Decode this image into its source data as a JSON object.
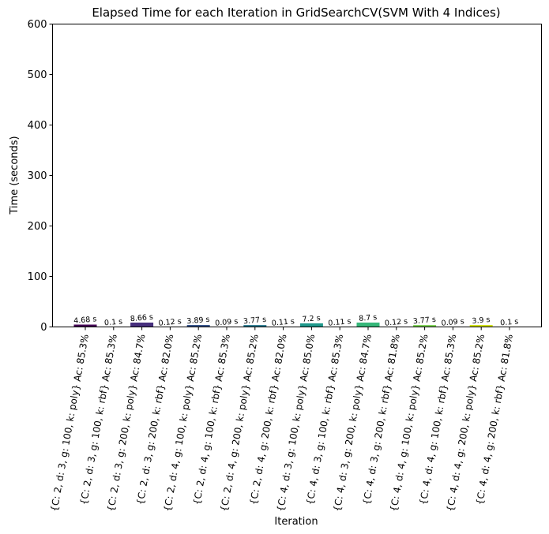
{
  "chart_data": {
    "type": "bar",
    "title": "Elapsed Time for each Iteration in GridSearchCV(SVM With 4 Indices)",
    "xlabel": "Iteration",
    "ylabel": "Time (seconds)",
    "ylim": [
      0,
      600
    ],
    "yticks": [
      0,
      100,
      200,
      300,
      400,
      500,
      600
    ],
    "categories": [
      "{C: 2, d: 3, g: 100, k: poly} Ac: 85.3%",
      "{C: 2, d: 3, g: 100, k: rbf} Ac: 85.3%",
      "{C: 2, d: 3, g: 200, k: poly} Ac: 84.7%",
      "{C: 2, d: 3, g: 200, k: rbf} Ac: 82.0%",
      "{C: 2, d: 4, g: 100, k: poly} Ac: 85.2%",
      "{C: 2, d: 4, g: 100, k: rbf} Ac: 85.3%",
      "{C: 2, d: 4, g: 200, k: poly} Ac: 85.2%",
      "{C: 2, d: 4, g: 200, k: rbf} Ac: 82.0%",
      "{C: 4, d: 3, g: 100, k: poly} Ac: 85.0%",
      "{C: 4, d: 3, g: 100, k: rbf} Ac: 85.3%",
      "{C: 4, d: 3, g: 200, k: poly} Ac: 84.7%",
      "{C: 4, d: 3, g: 200, k: rbf} Ac: 81.8%",
      "{C: 4, d: 4, g: 100, k: poly} Ac: 85.2%",
      "{C: 4, d: 4, g: 100, k: rbf} Ac: 85.3%",
      "{C: 4, d: 4, g: 200, k: poly} Ac: 85.2%",
      "{C: 4, d: 4, g: 200, k: rbf} Ac: 81.8%"
    ],
    "values": [
      4.68,
      0.1,
      8.66,
      0.12,
      3.89,
      0.09,
      3.77,
      0.11,
      7.2,
      0.11,
      8.7,
      0.12,
      3.77,
      0.09,
      3.9,
      0.1
    ],
    "bar_labels": [
      "4.68 s",
      "0.1 s",
      "8.66 s",
      "0.12 s",
      "3.89 s",
      "0.09 s",
      "3.77 s",
      "0.11 s",
      "7.2 s",
      "0.11 s",
      "8.7 s",
      "0.12 s",
      "3.77 s",
      "0.09 s",
      "3.9 s",
      "0.1 s"
    ],
    "colors": [
      "#440154",
      "#481a6c",
      "#472f7d",
      "#414487",
      "#39568c",
      "#31688e",
      "#2a788e",
      "#23888e",
      "#1f988b",
      "#22a884",
      "#35b779",
      "#54c568",
      "#7ad151",
      "#a5db36",
      "#d2e21b",
      "#fde725"
    ],
    "grid": false,
    "legend": "none"
  }
}
